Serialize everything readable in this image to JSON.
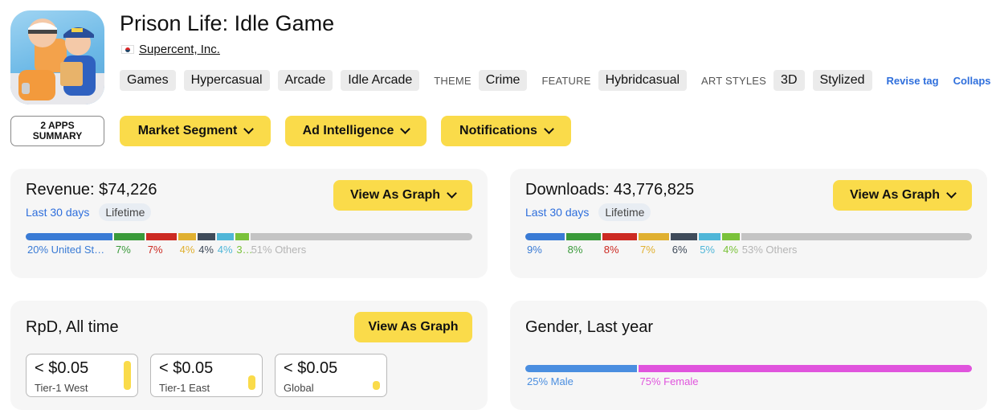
{
  "app": {
    "title": "Prison Life: Idle Game",
    "developer": "Supercent, Inc."
  },
  "tags": {
    "genres": [
      "Games",
      "Hypercasual",
      "Arcade",
      "Idle Arcade"
    ],
    "theme_label": "THEME",
    "theme": "Crime",
    "feature_label": "FEATURE",
    "feature": "Hybridcasual",
    "art_label": "ART STYLES",
    "art": [
      "3D",
      "Stylized"
    ],
    "revise_link": "Revise tag",
    "collapse_link": "Collaps"
  },
  "actions": {
    "summary_line1": "2 APPS",
    "summary_line2": "SUMMARY",
    "market_segment": "Market Segment",
    "ad_intelligence": "Ad Intelligence",
    "notifications": "Notifications"
  },
  "revenue": {
    "title": "Revenue: $74,226",
    "period_active": "Last 30 days",
    "period_other": "Lifetime",
    "graph_button": "View As Graph",
    "segments": [
      {
        "label": "20% United St…",
        "share": 20,
        "color": "#3a7bd5"
      },
      {
        "label": "7%",
        "share": 7,
        "color": "#3a9a3a"
      },
      {
        "label": "7%",
        "share": 7,
        "color": "#cc2a22"
      },
      {
        "label": "4%",
        "share": 4,
        "color": "#e0b030"
      },
      {
        "label": "4%",
        "share": 4,
        "color": "#3f4b5a"
      },
      {
        "label": "4%",
        "share": 4,
        "color": "#4fb6d8"
      },
      {
        "label": "3%",
        "share": 3,
        "color": "#7ac23a"
      },
      {
        "label": "51% Others",
        "share": 51,
        "color": "#c4c4c4"
      }
    ]
  },
  "downloads": {
    "title": "Downloads: 43,776,825",
    "period_active": "Last 30 days",
    "period_other": "Lifetime",
    "graph_button": "View As Graph",
    "segments": [
      {
        "label": "9%",
        "share": 9,
        "color": "#3a7bd5"
      },
      {
        "label": "8%",
        "share": 8,
        "color": "#3a9a3a"
      },
      {
        "label": "8%",
        "share": 8,
        "color": "#cc2a22"
      },
      {
        "label": "7%",
        "share": 7,
        "color": "#e0b030"
      },
      {
        "label": "6%",
        "share": 6,
        "color": "#3f4b5a"
      },
      {
        "label": "5%",
        "share": 5,
        "color": "#4fb6d8"
      },
      {
        "label": "4%",
        "share": 4,
        "color": "#7ac23a"
      },
      {
        "label": "53% Others",
        "share": 53,
        "color": "#c4c4c4"
      }
    ]
  },
  "rpd": {
    "title": "RpD, All time",
    "graph_button": "View As Graph",
    "tiers": [
      {
        "value": "< $0.05",
        "label": "Tier-1 West",
        "level": 1.0
      },
      {
        "value": "< $0.05",
        "label": "Tier-1 East",
        "level": 0.5
      },
      {
        "value": "< $0.05",
        "label": "Global",
        "level": 0.3
      }
    ]
  },
  "gender": {
    "title": "Gender, Last year",
    "male_label": "25% Male",
    "female_label": "75% Female",
    "male_share": 25,
    "female_share": 75,
    "male_color": "#4a8ee0",
    "female_color": "#e054dd"
  }
}
